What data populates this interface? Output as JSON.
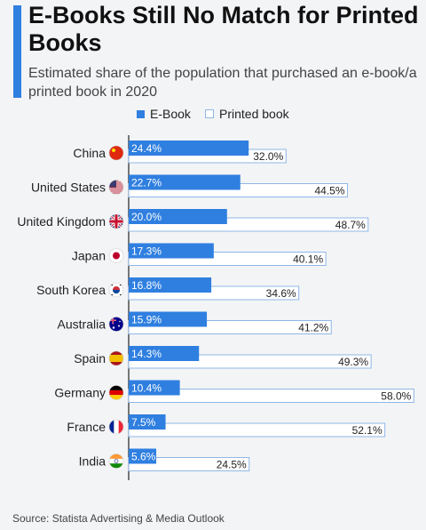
{
  "title": "E-Books Still No Match for Printed Books",
  "subtitle": "Estimated share of the population that purchased an e-book/a printed book in 2020",
  "source": "Source: Statista Advertising & Media Outlook",
  "colors": {
    "ebook": "#2f7fe0",
    "printed_fill": "#ffffff",
    "printed_border": "#8fb7e6",
    "accent": "#2f7fe0"
  },
  "chart_data": {
    "type": "bar",
    "orientation": "horizontal",
    "title": "E-Books Still No Match for Printed Books",
    "subtitle": "Estimated share of the population that purchased an e-book/a printed book in 2020",
    "xlabel": "",
    "ylabel": "",
    "xlim": [
      0,
      60
    ],
    "grid": false,
    "legend": "top-center",
    "categories": [
      "China",
      "United States",
      "United Kingdom",
      "Japan",
      "South Korea",
      "Australia",
      "Spain",
      "Germany",
      "France",
      "India"
    ],
    "flags": [
      "china-flag-icon",
      "us-flag-icon",
      "uk-flag-icon",
      "japan-flag-icon",
      "south-korea-flag-icon",
      "australia-flag-icon",
      "spain-flag-icon",
      "germany-flag-icon",
      "france-flag-icon",
      "india-flag-icon"
    ],
    "series": [
      {
        "name": "E-Book",
        "values": [
          24.4,
          22.7,
          20.0,
          17.3,
          16.8,
          15.9,
          14.3,
          10.4,
          7.5,
          5.6
        ],
        "labels": [
          "24.4%",
          "22.7%",
          "20.0%",
          "17.3%",
          "16.8%",
          "15.9%",
          "14.3%",
          "10.4%",
          "7.5%",
          "5.6%"
        ]
      },
      {
        "name": "Printed book",
        "values": [
          32.0,
          44.5,
          48.7,
          40.1,
          34.6,
          41.2,
          49.3,
          58.0,
          52.1,
          24.5
        ],
        "labels": [
          "32.0%",
          "44.5%",
          "48.7%",
          "40.1%",
          "34.6%",
          "41.2%",
          "49.3%",
          "58.0%",
          "52.1%",
          "24.5%"
        ]
      }
    ]
  }
}
